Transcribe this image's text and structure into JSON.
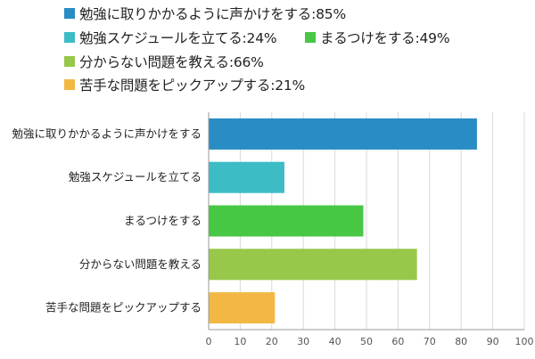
{
  "chart_data": {
    "type": "bar",
    "orientation": "horizontal",
    "categories": [
      "勉強に取りかかるように声かけをする",
      "勉強スケジュールを立てる",
      "まるつけをする",
      "分からない問題を教える",
      "苦手な問題をピックアップする"
    ],
    "values": [
      85,
      24,
      49,
      66,
      21
    ],
    "colors": [
      "#2a8cc4",
      "#3dbcc6",
      "#48c745",
      "#97c84a",
      "#f3b843"
    ],
    "legend": [
      "勉強に取りかかるように声かけをする:85%",
      "勉強スケジュールを立てる:24%",
      "まるつけをする:49%",
      "分からない問題を教える:66%",
      "苦手な問題をピックアップする:21%"
    ],
    "x_ticks": [
      "0",
      "10",
      "20",
      "30",
      "40",
      "50",
      "60",
      "70",
      "80",
      "90",
      "100"
    ],
    "xlim": [
      0,
      100
    ],
    "grid": true,
    "legend_position": "top"
  }
}
